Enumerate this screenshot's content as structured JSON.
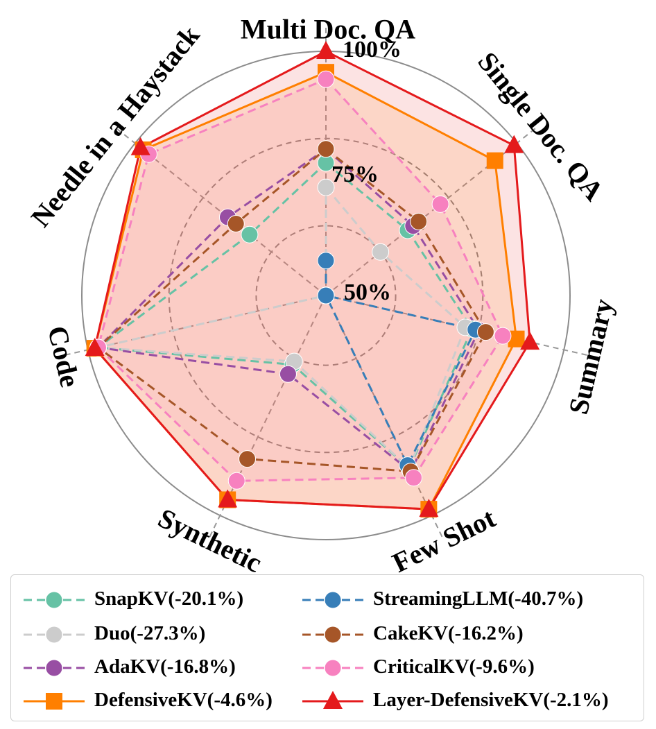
{
  "chart_data": {
    "type": "radar",
    "axes": [
      "Multi Doc. QA",
      "Single Doc. QA",
      "Summary",
      "Few Shot",
      "Synthetic",
      "Code",
      "Needle in a Haystack"
    ],
    "rlim": [
      30,
      100
    ],
    "ring_labels": [
      "50%",
      "75%",
      "100%"
    ],
    "ring_values": [
      50,
      75,
      100
    ],
    "series": [
      {
        "name": "SnapKV",
        "label": "SnapKV(-20.1%)",
        "color": "#66c2a5",
        "marker": "circle",
        "style": "dashed",
        "fill": false,
        "values": [
          68,
          60,
          73,
          85,
          52,
          97,
          58
        ]
      },
      {
        "name": "Duo",
        "label": "Duo(-27.3%)",
        "color": "#cccccc",
        "marker": "circle",
        "style": "dashed",
        "fill": false,
        "values": [
          61,
          50,
          71,
          85,
          51,
          97,
          30
        ]
      },
      {
        "name": "AdaKV",
        "label": "AdaKV(-16.8%)",
        "color": "#984ea3",
        "marker": "circle",
        "style": "dashed",
        "fill": false,
        "values": [
          72,
          62,
          75,
          86,
          55,
          97,
          66
        ]
      },
      {
        "name": "DefensiveKV",
        "label": "DefensiveKV(-4.6%)",
        "color": "#ff7f00",
        "marker": "square",
        "style": "solid",
        "fill": true,
        "values": [
          94,
          92,
          86,
          98,
          95,
          98,
          97
        ]
      },
      {
        "name": "StreamingLLM",
        "label": "StreamingLLM(-40.7%)",
        "color": "#377eb8",
        "marker": "circle",
        "style": "dashed",
        "fill": false,
        "values": [
          40,
          30,
          74,
          84,
          30,
          30,
          30
        ]
      },
      {
        "name": "CakeKV",
        "label": "CakeKV(-16.2%)",
        "color": "#a65628",
        "marker": "circle",
        "style": "dashed",
        "fill": false,
        "values": [
          72,
          64,
          77,
          86,
          82,
          97,
          63
        ]
      },
      {
        "name": "CriticalKV",
        "label": "CriticalKV(-9.6%)",
        "color": "#f781bf",
        "marker": "circle",
        "style": "dashed",
        "fill": true,
        "values": [
          92,
          72,
          82,
          88,
          89,
          97,
          95
        ]
      },
      {
        "name": "Layer-DefensiveKV",
        "label": "Layer-DefensiveKV(-2.1%)",
        "color": "#e41a1c",
        "marker": "triangle",
        "style": "solid",
        "fill": true,
        "values": [
          100,
          99,
          90,
          98,
          95,
          98,
          98
        ]
      }
    ]
  }
}
